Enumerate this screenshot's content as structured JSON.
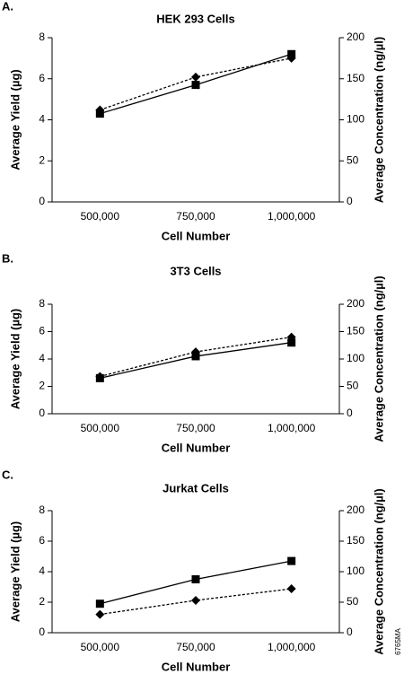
{
  "chart_data": [
    {
      "type": "line",
      "label": "A.",
      "title": "HEK 293 Cells",
      "xlabel": "Cell Number",
      "ylabel": "Average Yield (µg)",
      "y2label": "Average Concentration (ng/µl)",
      "categories": [
        "500,000",
        "750,000",
        "1,000,000"
      ],
      "series": [
        {
          "color": "#000000",
          "marker": "square",
          "linestyle": "solid",
          "values": [
            4.3,
            5.7,
            7.2
          ]
        },
        {
          "color": "#000000",
          "marker": "diamond",
          "linestyle": "dotted",
          "axis": "y2",
          "values": [
            112,
            152,
            175
          ]
        }
      ],
      "ylim": [
        0,
        8
      ],
      "yticks": [
        0,
        2,
        4,
        6,
        8
      ],
      "y2lim": [
        0,
        200
      ],
      "y2ticks": [
        0,
        50,
        100,
        150,
        200
      ]
    },
    {
      "type": "line",
      "label": "B.",
      "title": "3T3 Cells",
      "xlabel": "Cell Number",
      "ylabel": "Average Yield (µg)",
      "y2label": "Average Concentration (ng/µl)",
      "categories": [
        "500,000",
        "750,000",
        "1,000,000"
      ],
      "series": [
        {
          "color": "#000000",
          "marker": "square",
          "linestyle": "solid",
          "values": [
            2.6,
            4.2,
            5.2
          ]
        },
        {
          "color": "#000000",
          "marker": "diamond",
          "linestyle": "dotted",
          "axis": "y2",
          "values": [
            68,
            113,
            140
          ]
        }
      ],
      "ylim": [
        0,
        8
      ],
      "yticks": [
        0,
        2,
        4,
        6,
        8
      ],
      "y2lim": [
        0,
        200
      ],
      "y2ticks": [
        0,
        50,
        100,
        150,
        200
      ]
    },
    {
      "type": "line",
      "label": "C.",
      "title": "Jurkat Cells",
      "xlabel": "Cell Number",
      "ylabel": "Average Yield (µg)",
      "y2label": "Average Concentration (ng/µl)",
      "categories": [
        "500,000",
        "750,000",
        "1,000,000"
      ],
      "series": [
        {
          "color": "#000000",
          "marker": "square",
          "linestyle": "solid",
          "values": [
            1.9,
            3.5,
            4.7
          ]
        },
        {
          "color": "#000000",
          "marker": "diamond",
          "linestyle": "dotted",
          "axis": "y2",
          "values": [
            30,
            53,
            72
          ]
        }
      ],
      "ylim": [
        0,
        8
      ],
      "yticks": [
        0,
        2,
        4,
        6,
        8
      ],
      "y2lim": [
        0,
        200
      ],
      "y2ticks": [
        0,
        50,
        100,
        150,
        200
      ]
    }
  ],
  "footnote": "6765MA"
}
